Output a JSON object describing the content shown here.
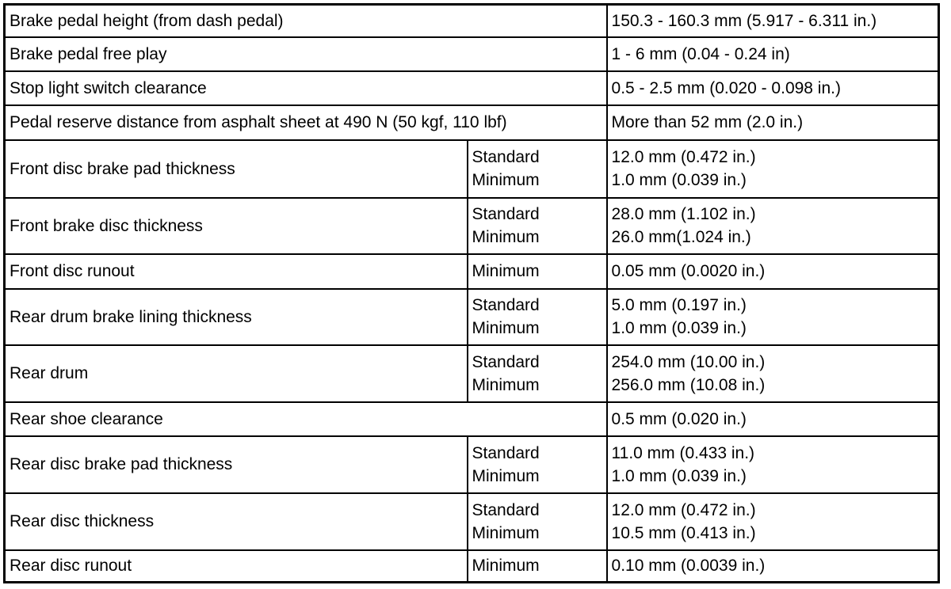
{
  "rows": [
    {
      "item": "Brake pedal height (from dash pedal)",
      "value": "150.3 - 160.3 mm (5.917 - 6.311 in.)"
    },
    {
      "item": "Brake pedal free play",
      "value": "1 - 6 mm (0.04 - 0.24 in)"
    },
    {
      "item": "Stop light switch clearance",
      "value": "0.5 - 2.5 mm (0.020 - 0.098 in.)"
    },
    {
      "item": "Pedal reserve distance from asphalt sheet at 490 N (50 kgf, 110 lbf)",
      "value": "More than 52 mm (2.0 in.)"
    },
    {
      "item": "Front disc brake pad thickness",
      "spec": [
        "Standard",
        "Minimum"
      ],
      "values": [
        "12.0 mm (0.472 in.)",
        "1.0 mm (0.039 in.)"
      ]
    },
    {
      "item": "Front brake disc thickness",
      "spec": [
        "Standard",
        "Minimum"
      ],
      "values": [
        "28.0 mm (1.102 in.)",
        "26.0 mm(1.024 in.)"
      ]
    },
    {
      "item": "Front disc runout",
      "spec": [
        "Minimum"
      ],
      "values": [
        "0.05 mm (0.0020 in.)"
      ]
    },
    {
      "item": "Rear drum brake lining thickness",
      "spec": [
        "Standard",
        "Minimum"
      ],
      "values": [
        "5.0 mm (0.197 in.)",
        "1.0 mm (0.039 in.)"
      ]
    },
    {
      "item": "Rear drum",
      "spec": [
        "Standard",
        "Minimum"
      ],
      "values": [
        "254.0 mm (10.00 in.)",
        "256.0 mm (10.08 in.)"
      ]
    },
    {
      "item": "Rear shoe clearance",
      "value": "0.5 mm (0.020 in.)"
    },
    {
      "item": "Rear disc brake pad thickness",
      "spec": [
        "Standard",
        "Minimum"
      ],
      "values": [
        "11.0 mm (0.433 in.)",
        "1.0 mm (0.039 in.)"
      ]
    },
    {
      "item": "Rear disc thickness",
      "spec": [
        "Standard",
        "Minimum"
      ],
      "values": [
        "12.0 mm (0.472 in.)",
        "10.5 mm (0.413 in.)"
      ]
    },
    {
      "item": "Rear disc runout",
      "spec": [
        "Minimum"
      ],
      "values": [
        "0.10 mm (0.0039 in.)"
      ]
    }
  ]
}
